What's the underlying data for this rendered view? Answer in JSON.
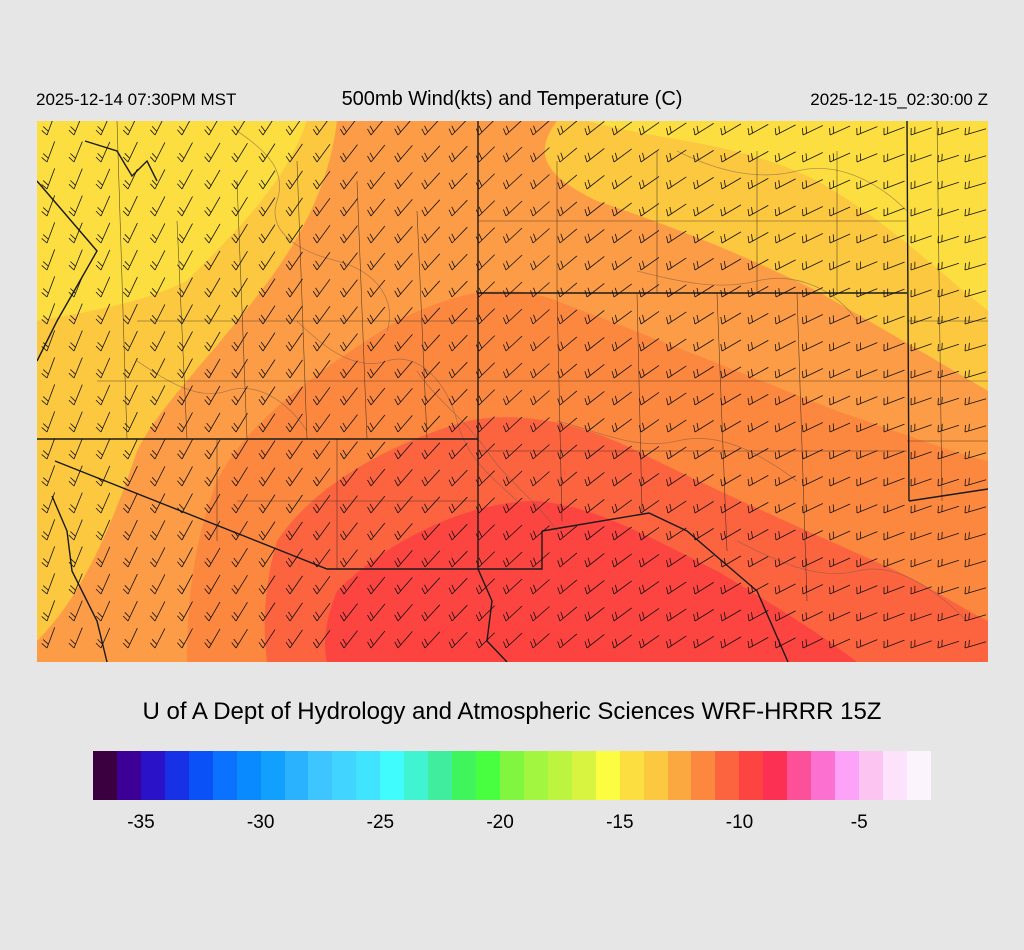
{
  "header": {
    "local_time": "2025-12-14 07:30PM MST",
    "title": "500mb Wind(kts) and Temperature (C)",
    "valid_time": "2025-12-15_02:30:00 Z"
  },
  "credit": "U of A Dept of Hydrology and Atmospheric Sciences WRF-HRRR 15Z",
  "colorbar": {
    "colors": [
      "#3a0040",
      "#3c0096",
      "#2a12c8",
      "#1830e6",
      "#0a52f8",
      "#0a72ff",
      "#0a8aff",
      "#12a0ff",
      "#2ab2ff",
      "#3ec4ff",
      "#40d4ff",
      "#40e4ff",
      "#40fcfc",
      "#40f4d2",
      "#40ec9e",
      "#40f45c",
      "#48ff40",
      "#80f640",
      "#a2f640",
      "#bcf440",
      "#d8f440",
      "#fcfc40",
      "#fcde40",
      "#fcc840",
      "#fca840",
      "#fc8840",
      "#fc6440",
      "#fc4440",
      "#fc3052",
      "#fc5098",
      "#fc70d0",
      "#fca2f8",
      "#fcc4f0",
      "#fce2fa",
      "#fcf4fc"
    ],
    "tick_labels": [
      "-35",
      "-30",
      "-25",
      "-20",
      "-15",
      "-10",
      "-5"
    ],
    "tick_values": [
      -35,
      -30,
      -25,
      -20,
      -15,
      -10,
      -5
    ],
    "min": -36,
    "max": -1
  },
  "map": {
    "background_color": "#fc9c46",
    "field_colors": {
      "yellow": "#fcde40",
      "light_orange": "#fcc840",
      "orange": "#fca840",
      "dark_orange": "#fc8840",
      "red_orange": "#fc6440",
      "red": "#fc4440"
    },
    "border_color": "#1a1a1a",
    "barb_color": "#111111",
    "terrain_contour_color": "#7a5a4a"
  }
}
